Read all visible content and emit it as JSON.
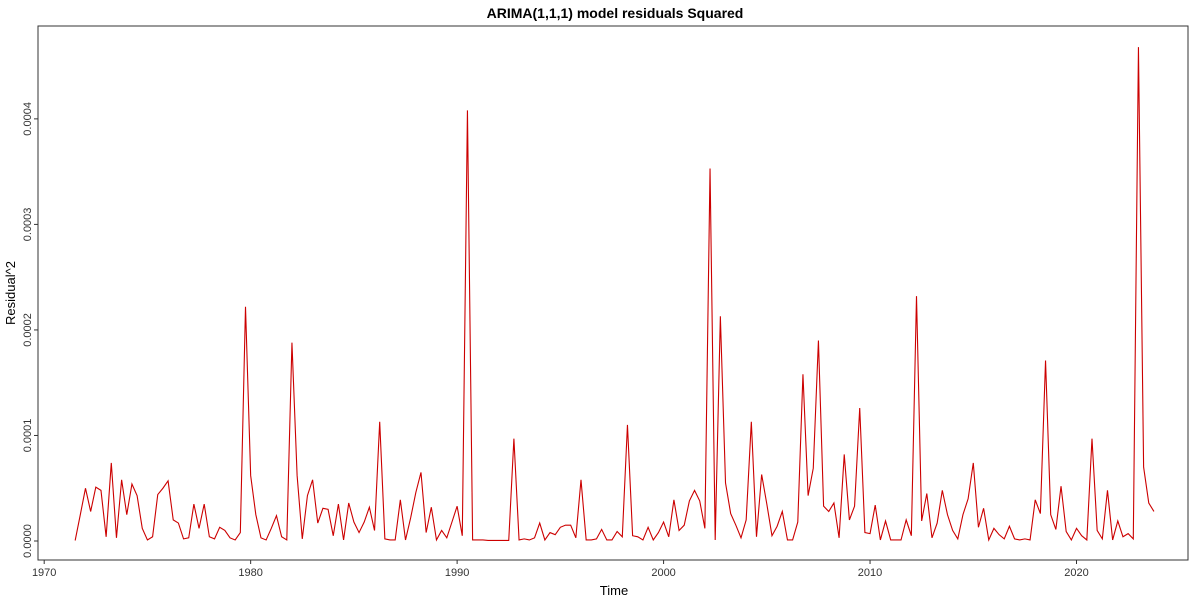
{
  "chart_data": {
    "type": "line",
    "title": "ARIMA(1,1,1) model residuals Squared",
    "xlabel": "Time",
    "ylabel": "Residual^2",
    "xlim": [
      1969.7,
      2025.4
    ],
    "ylim": [
      -1.8e-05,
      0.000488
    ],
    "x_ticks": [
      1970,
      1980,
      1990,
      2000,
      2010,
      2020
    ],
    "x_tick_labels": [
      "1970",
      "1980",
      "1990",
      "2000",
      "2010",
      "2020"
    ],
    "y_ticks": [
      0,
      0.0001,
      0.0002,
      0.0003,
      0.0004
    ],
    "y_tick_labels": [
      "0.0000",
      "0.0001",
      "0.0002",
      "0.0003",
      "0.0004"
    ],
    "grid": true,
    "line_color": "#cc0000",
    "series": [
      {
        "x": [
          1971.5,
          1971.75,
          1972.0,
          1972.25,
          1972.5,
          1972.75,
          1973.0,
          1973.25,
          1973.5,
          1973.75,
          1974.0,
          1974.25,
          1974.5,
          1974.75,
          1975.0,
          1975.25,
          1975.5,
          1975.75,
          1976.0,
          1976.25,
          1976.5,
          1976.75,
          1977.0,
          1977.25,
          1977.5,
          1977.75,
          1978.0,
          1978.25,
          1978.5,
          1978.75,
          1979.0,
          1979.25,
          1979.5,
          1979.75,
          1980.0,
          1980.25,
          1980.5,
          1980.75,
          1981.0,
          1981.25,
          1981.5,
          1981.75,
          1982.0,
          1982.25,
          1982.5,
          1982.75,
          1983.0,
          1983.25,
          1983.5,
          1983.75,
          1984.0,
          1984.25,
          1984.5,
          1984.75,
          1985.0,
          1985.25,
          1985.5,
          1985.75,
          1986.0,
          1986.25,
          1986.5,
          1986.75,
          1987.0,
          1987.25,
          1987.5,
          1987.75,
          1988.0,
          1988.25,
          1988.5,
          1988.75,
          1989.0,
          1989.25,
          1989.5,
          1989.75,
          1990.0,
          1990.25,
          1990.5,
          1990.75,
          1991.0,
          1991.25,
          1991.5,
          1991.75,
          1992.0,
          1992.25,
          1992.5,
          1992.75,
          1993.0,
          1993.25,
          1993.5,
          1993.75,
          1994.0,
          1994.25,
          1994.5,
          1994.75,
          1995.0,
          1995.25,
          1995.5,
          1995.75,
          1996.0,
          1996.25,
          1996.5,
          1996.75,
          1997.0,
          1997.25,
          1997.5,
          1997.75,
          1998.0,
          1998.25,
          1998.5,
          1998.75,
          1999.0,
          1999.25,
          1999.5,
          1999.75,
          2000.0,
          2000.25,
          2000.5,
          2000.75,
          2001.0,
          2001.25,
          2001.5,
          2001.75,
          2002.0,
          2002.25,
          2002.5,
          2002.75,
          2003.0,
          2003.25,
          2003.5,
          2003.75,
          2004.0,
          2004.25,
          2004.5,
          2004.75,
          2005.0,
          2005.25,
          2005.5,
          2005.75,
          2006.0,
          2006.25,
          2006.5,
          2006.75,
          2007.0,
          2007.25,
          2007.5,
          2007.75,
          2008.0,
          2008.25,
          2008.5,
          2008.75,
          2009.0,
          2009.25,
          2009.5,
          2009.75,
          2010.0,
          2010.25,
          2010.5,
          2010.75,
          2011.0,
          2011.25,
          2011.5,
          2011.75,
          2012.0,
          2012.25,
          2012.5,
          2012.75,
          2013.0,
          2013.25,
          2013.5,
          2013.75,
          2014.0,
          2014.25,
          2014.5,
          2014.75,
          2015.0,
          2015.25,
          2015.5,
          2015.75,
          2016.0,
          2016.25,
          2016.5,
          2016.75,
          2017.0,
          2017.25,
          2017.5,
          2017.75,
          2018.0,
          2018.25,
          2018.5,
          2018.75,
          2019.0,
          2019.25,
          2019.5,
          2019.75,
          2020.0,
          2020.25,
          2020.5,
          2020.75,
          2021.0,
          2021.25,
          2021.5,
          2021.75,
          2022.0,
          2022.25,
          2022.5,
          2022.75,
          2023.0,
          2023.25,
          2023.5,
          2023.75
        ],
        "values": [
          5e-07,
          2.5e-05,
          5e-05,
          2.8e-05,
          5.1e-05,
          4.8e-05,
          4e-06,
          7.4e-05,
          3e-06,
          5.8e-05,
          2.5e-05,
          5.4e-05,
          4.3e-05,
          1.2e-05,
          1e-06,
          4e-06,
          4.4e-05,
          5e-05,
          5.7e-05,
          2e-05,
          1.7e-05,
          2e-06,
          3e-06,
          3.5e-05,
          1.2e-05,
          3.5e-05,
          4e-06,
          2e-06,
          1.3e-05,
          1e-05,
          3e-06,
          1e-06,
          8e-06,
          0.000222,
          6.2e-05,
          2.5e-05,
          3e-06,
          1e-06,
          1.2e-05,
          2.4e-05,
          4e-06,
          1e-06,
          0.000188,
          6.2e-05,
          2e-06,
          4.3e-05,
          5.8e-05,
          1.7e-05,
          3.1e-05,
          3e-05,
          5e-06,
          3.5e-05,
          1e-06,
          3.6e-05,
          1.8e-05,
          8e-06,
          1.8e-05,
          3.2e-05,
          1e-05,
          0.000113,
          2e-06,
          1e-06,
          1e-06,
          3.9e-05,
          1e-06,
          2.2e-05,
          4.6e-05,
          6.5e-05,
          8e-06,
          3.2e-05,
          1e-06,
          1e-05,
          3e-06,
          1.8e-05,
          3.3e-05,
          5e-06,
          0.000408,
          1e-06,
          1e-06,
          1e-06,
          5e-07,
          5e-07,
          5e-07,
          5e-07,
          5e-07,
          9.7e-05,
          1e-06,
          2e-06,
          1e-06,
          3e-06,
          1.7e-05,
          1e-06,
          8e-06,
          6e-06,
          1.3e-05,
          1.5e-05,
          1.5e-05,
          3e-06,
          5.8e-05,
          1e-06,
          1e-06,
          2e-06,
          1.1e-05,
          1e-06,
          1e-06,
          9e-06,
          4e-06,
          0.00011,
          5e-06,
          4e-06,
          1e-06,
          1.3e-05,
          1e-06,
          8e-06,
          1.8e-05,
          4e-06,
          3.9e-05,
          1e-05,
          1.5e-05,
          3.8e-05,
          4.8e-05,
          3.8e-05,
          1.2e-05,
          0.000353,
          1e-06,
          0.000213,
          5.5e-05,
          2.6e-05,
          1.5e-05,
          3e-06,
          2e-05,
          0.000113,
          4e-06,
          6.3e-05,
          3.5e-05,
          5e-06,
          1.4e-05,
          2.8e-05,
          1e-06,
          1e-06,
          1.8e-05,
          0.000158,
          4.3e-05,
          6.9e-05,
          0.00019,
          3.3e-05,
          2.8e-05,
          3.6e-05,
          3e-06,
          8.2e-05,
          2e-05,
          3.3e-05,
          0.000126,
          8e-06,
          7e-06,
          3.4e-05,
          1e-06,
          1.9e-05,
          1e-06,
          1e-06,
          1e-06,
          2e-05,
          5e-06,
          0.000232,
          1.9e-05,
          4.5e-05,
          3e-06,
          1.7e-05,
          4.8e-05,
          2.5e-05,
          1e-05,
          2e-06,
          2.5e-05,
          4e-05,
          7.4e-05,
          1.3e-05,
          3.1e-05,
          1e-06,
          1.2e-05,
          6e-06,
          2e-06,
          1.4e-05,
          2e-06,
          1e-06,
          2e-06,
          1e-06,
          3.9e-05,
          2.6e-05,
          0.000171,
          2.5e-05,
          1.1e-05,
          5.2e-05,
          9e-06,
          1e-06,
          1.2e-05,
          5e-06,
          1e-06,
          9.7e-05,
          1e-05,
          2e-06,
          4.8e-05,
          1e-06,
          1.9e-05,
          4e-06,
          7e-06,
          2e-06,
          0.000468,
          7e-05,
          3.6e-05,
          2.8e-05
        ]
      }
    ]
  }
}
